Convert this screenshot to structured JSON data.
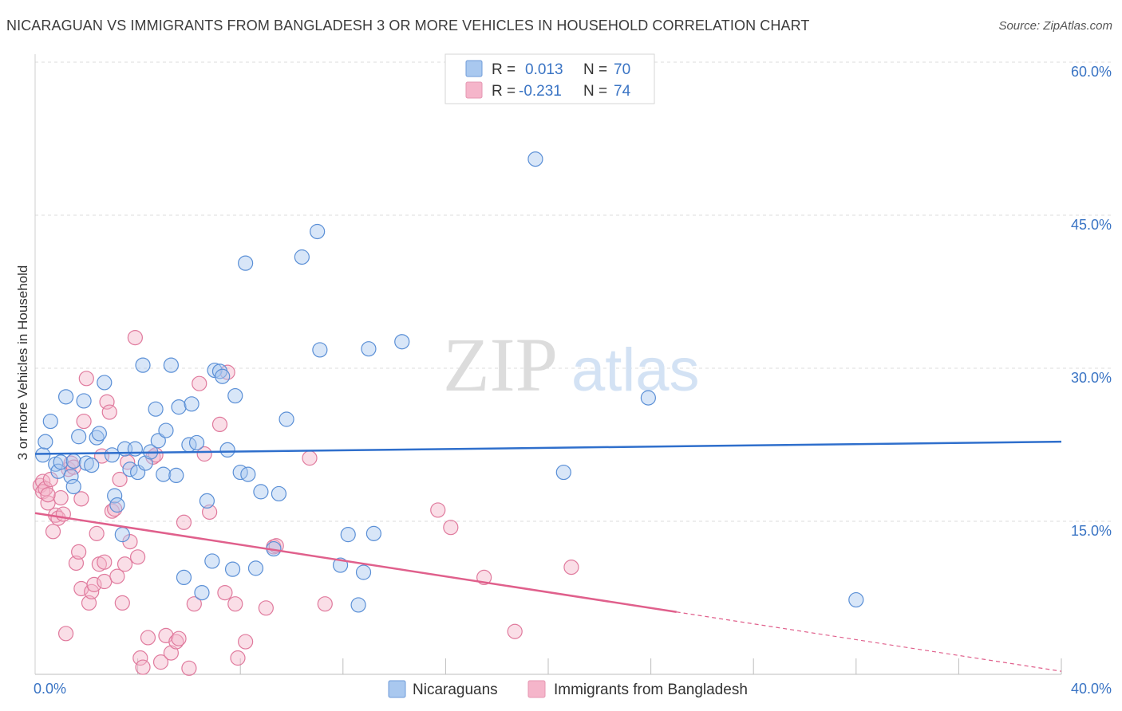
{
  "title": "NICARAGUAN VS IMMIGRANTS FROM BANGLADESH 3 OR MORE VEHICLES IN HOUSEHOLD CORRELATION CHART",
  "source": "Source: ZipAtlas.com",
  "watermark": {
    "part1": "ZIP",
    "part2": "atlas"
  },
  "colors": {
    "blue_fill": "#a9c8ef",
    "blue_stroke": "#5a8fd6",
    "blue_line": "#2f6fcc",
    "pink_fill": "#f5b5ca",
    "pink_stroke": "#e07a9d",
    "pink_line": "#e0608c",
    "grid": "#dddddd",
    "tick_text": "#3a74c4"
  },
  "legend": {
    "rows": [
      {
        "r_label": "R =",
        "r_value": "0.013",
        "n_label": "N =",
        "n_value": "70"
      },
      {
        "r_label": "R =",
        "r_value": "-0.231",
        "n_label": "N =",
        "n_value": "74"
      }
    ]
  },
  "chart_data": {
    "type": "scatter",
    "title": "NICARAGUAN VS IMMIGRANTS FROM BANGLADESH 3 OR MORE VEHICLES IN HOUSEHOLD CORRELATION CHART",
    "xlabel": "",
    "ylabel": "3 or more Vehicles in Household",
    "xlim": [
      0,
      40
    ],
    "ylim": [
      0,
      60
    ],
    "x_tick_labels": [
      "0.0%",
      "40.0%"
    ],
    "y_ticks": [
      15,
      30,
      45,
      60
    ],
    "y_tick_labels": [
      "15.0%",
      "30.0%",
      "45.0%",
      "60.0%"
    ],
    "grid": true,
    "legend_position": "top-center",
    "series": [
      {
        "name": "Nicaraguans",
        "color": "blue",
        "r": 0.013,
        "n": 70,
        "trend": {
          "x": [
            0,
            40
          ],
          "y": [
            21.6,
            22.8
          ],
          "dashed_from": null
        },
        "points": [
          [
            0.3,
            21.5
          ],
          [
            0.4,
            22.8
          ],
          [
            0.6,
            24.8
          ],
          [
            0.8,
            20.6
          ],
          [
            0.9,
            19.9
          ],
          [
            1.0,
            20.8
          ],
          [
            1.2,
            27.2
          ],
          [
            1.4,
            19.4
          ],
          [
            1.5,
            20.9
          ],
          [
            1.7,
            23.3
          ],
          [
            1.9,
            26.8
          ],
          [
            2.0,
            20.7
          ],
          [
            2.2,
            20.5
          ],
          [
            2.4,
            23.2
          ],
          [
            2.5,
            23.6
          ],
          [
            2.7,
            28.6
          ],
          [
            3.0,
            21.5
          ],
          [
            3.1,
            17.5
          ],
          [
            3.2,
            16.6
          ],
          [
            3.4,
            13.7
          ],
          [
            3.5,
            22.1
          ],
          [
            3.7,
            20.1
          ],
          [
            3.9,
            22.1
          ],
          [
            4.0,
            19.8
          ],
          [
            4.2,
            30.3
          ],
          [
            4.3,
            20.7
          ],
          [
            4.5,
            21.8
          ],
          [
            4.7,
            26.0
          ],
          [
            4.8,
            22.9
          ],
          [
            5.0,
            19.6
          ],
          [
            5.1,
            23.9
          ],
          [
            5.3,
            30.3
          ],
          [
            5.5,
            19.5
          ],
          [
            5.6,
            26.2
          ],
          [
            5.8,
            9.5
          ],
          [
            6.0,
            22.5
          ],
          [
            6.1,
            26.5
          ],
          [
            6.3,
            22.7
          ],
          [
            6.5,
            8.0
          ],
          [
            6.7,
            17.0
          ],
          [
            6.9,
            11.1
          ],
          [
            7.0,
            29.8
          ],
          [
            7.2,
            29.7
          ],
          [
            7.3,
            29.2
          ],
          [
            7.5,
            22.0
          ],
          [
            7.7,
            10.3
          ],
          [
            7.8,
            27.3
          ],
          [
            8.0,
            19.8
          ],
          [
            8.2,
            40.3
          ],
          [
            8.3,
            19.6
          ],
          [
            8.6,
            10.4
          ],
          [
            8.8,
            17.9
          ],
          [
            9.3,
            12.3
          ],
          [
            9.5,
            17.7
          ],
          [
            9.8,
            25.0
          ],
          [
            10.4,
            40.9
          ],
          [
            11.0,
            43.4
          ],
          [
            11.1,
            31.8
          ],
          [
            11.9,
            10.7
          ],
          [
            12.2,
            13.7
          ],
          [
            12.6,
            6.8
          ],
          [
            12.8,
            10.0
          ],
          [
            13.2,
            13.8
          ],
          [
            13.0,
            31.9
          ],
          [
            14.3,
            32.6
          ],
          [
            19.5,
            50.5
          ],
          [
            20.6,
            19.8
          ],
          [
            23.9,
            27.1
          ],
          [
            32.0,
            7.3
          ],
          [
            1.5,
            18.4
          ]
        ]
      },
      {
        "name": "Immigrants from Bangladesh",
        "color": "pink",
        "r": -0.231,
        "n": 74,
        "trend": {
          "x": [
            0,
            40
          ],
          "y": [
            15.8,
            0.3
          ],
          "dashed_from": 25.0
        },
        "points": [
          [
            0.2,
            18.5
          ],
          [
            0.3,
            18.9
          ],
          [
            0.3,
            17.9
          ],
          [
            0.4,
            18.2
          ],
          [
            0.5,
            16.8
          ],
          [
            0.6,
            19.1
          ],
          [
            0.7,
            14.0
          ],
          [
            0.8,
            15.6
          ],
          [
            0.9,
            15.3
          ],
          [
            1.0,
            17.3
          ],
          [
            1.1,
            15.7
          ],
          [
            1.2,
            4.0
          ],
          [
            1.3,
            20.1
          ],
          [
            1.4,
            20.7
          ],
          [
            1.5,
            20.3
          ],
          [
            1.6,
            10.9
          ],
          [
            1.7,
            12.0
          ],
          [
            1.8,
            8.4
          ],
          [
            1.9,
            24.8
          ],
          [
            2.0,
            29.0
          ],
          [
            2.1,
            7.0
          ],
          [
            2.2,
            8.1
          ],
          [
            2.3,
            8.8
          ],
          [
            2.4,
            13.8
          ],
          [
            2.5,
            10.8
          ],
          [
            2.6,
            21.4
          ],
          [
            2.7,
            9.1
          ],
          [
            2.8,
            26.7
          ],
          [
            2.9,
            25.7
          ],
          [
            3.0,
            16.0
          ],
          [
            3.1,
            16.2
          ],
          [
            3.2,
            9.6
          ],
          [
            3.3,
            19.1
          ],
          [
            3.4,
            7.0
          ],
          [
            3.5,
            10.8
          ],
          [
            3.6,
            20.8
          ],
          [
            3.7,
            13.0
          ],
          [
            3.9,
            33.0
          ],
          [
            4.0,
            11.5
          ],
          [
            4.1,
            1.6
          ],
          [
            4.2,
            0.7
          ],
          [
            4.4,
            3.6
          ],
          [
            4.6,
            21.3
          ],
          [
            4.7,
            21.5
          ],
          [
            4.9,
            1.2
          ],
          [
            5.1,
            3.8
          ],
          [
            5.3,
            2.1
          ],
          [
            5.5,
            3.2
          ],
          [
            5.6,
            3.5
          ],
          [
            5.8,
            14.9
          ],
          [
            6.0,
            0.6
          ],
          [
            6.2,
            6.9
          ],
          [
            6.4,
            28.5
          ],
          [
            6.6,
            21.6
          ],
          [
            6.8,
            15.9
          ],
          [
            7.2,
            24.5
          ],
          [
            7.4,
            8.0
          ],
          [
            7.5,
            29.6
          ],
          [
            7.8,
            6.9
          ],
          [
            7.9,
            1.6
          ],
          [
            8.2,
            3.2
          ],
          [
            9.0,
            6.5
          ],
          [
            9.3,
            12.5
          ],
          [
            9.4,
            12.6
          ],
          [
            10.7,
            21.2
          ],
          [
            11.3,
            6.9
          ],
          [
            15.7,
            16.1
          ],
          [
            16.2,
            14.4
          ],
          [
            17.5,
            9.5
          ],
          [
            18.7,
            4.2
          ],
          [
            20.9,
            10.5
          ],
          [
            0.5,
            17.6
          ],
          [
            1.8,
            17.2
          ],
          [
            2.7,
            11.0
          ]
        ]
      }
    ]
  },
  "bottom_legend": [
    {
      "label": "Nicaraguans"
    },
    {
      "label": "Immigrants from Bangladesh"
    }
  ]
}
